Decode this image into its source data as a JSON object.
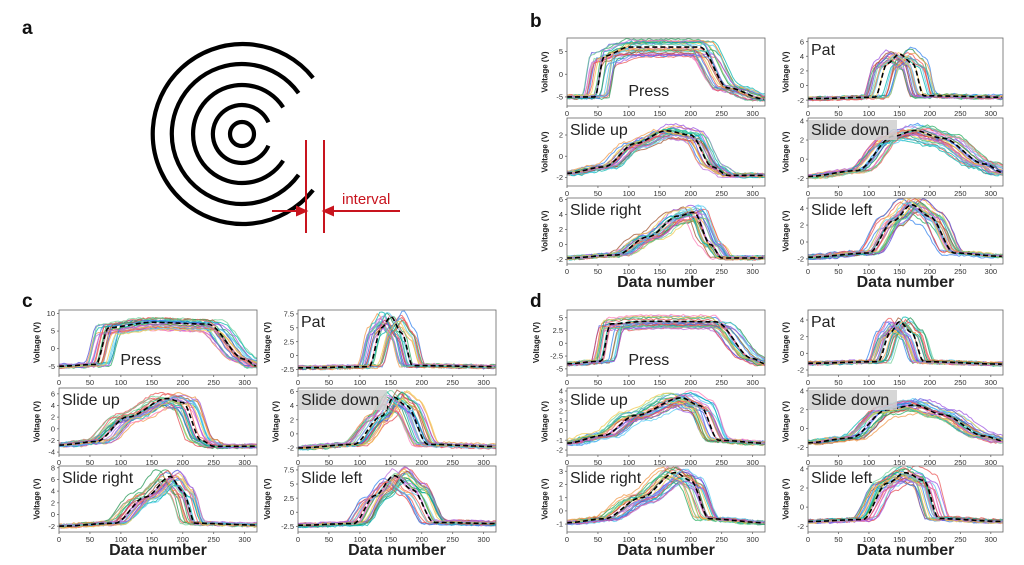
{
  "figure": {
    "panel_labels": {
      "a": "a",
      "b": "b",
      "c": "c",
      "d": "d"
    },
    "interval_label": "interval",
    "accent_color": "#c8141e"
  },
  "chart_data": [
    {
      "panel": "b",
      "type": "line",
      "xlabel": "Data number",
      "xticks": [
        0,
        50,
        100,
        150,
        200,
        250,
        300
      ],
      "xlim": [
        0,
        320
      ],
      "subplots": [
        {
          "gesture": "Press",
          "ylabel": "Voltage (V)",
          "ylim": [
            -7,
            8
          ],
          "yticks": [
            -5,
            0,
            5
          ],
          "mean": [
            [
              0,
              -5
            ],
            [
              45,
              -5
            ],
            [
              60,
              4
            ],
            [
              100,
              6
            ],
            [
              150,
              6
            ],
            [
              215,
              6
            ],
            [
              260,
              -3
            ],
            [
              320,
              -5.5
            ]
          ]
        },
        {
          "gesture": "Pat",
          "ylabel": "Voltage (V)",
          "ylim": [
            -2.8,
            6.5
          ],
          "yticks": [
            -2,
            0,
            2,
            4,
            6
          ],
          "mean": [
            [
              0,
              -1.8
            ],
            [
              110,
              -1.6
            ],
            [
              130,
              3
            ],
            [
              150,
              4.3
            ],
            [
              172,
              3
            ],
            [
              190,
              -1.4
            ],
            [
              320,
              -1.6
            ]
          ]
        },
        {
          "gesture": "Slide up",
          "ylabel": "Voltage (V)",
          "ylim": [
            -2.8,
            3.6
          ],
          "yticks": [
            -2,
            0,
            2
          ],
          "mean": [
            [
              0,
              -1.6
            ],
            [
              60,
              -1
            ],
            [
              110,
              1.2
            ],
            [
              160,
              2.4
            ],
            [
              200,
              2
            ],
            [
              235,
              -1
            ],
            [
              260,
              -1.8
            ],
            [
              320,
              -1.8
            ]
          ]
        },
        {
          "gesture": "Slide down",
          "ylabel": "Voltage (V)",
          "ylim": [
            -2.8,
            4.3
          ],
          "yticks": [
            -2,
            0,
            2,
            4
          ],
          "mean": [
            [
              0,
              -1.8
            ],
            [
              80,
              -1.2
            ],
            [
              140,
              2.4
            ],
            [
              175,
              3
            ],
            [
              220,
              2.2
            ],
            [
              290,
              -0.5
            ],
            [
              320,
              -1.4
            ]
          ]
        },
        {
          "gesture": "Slide right",
          "ylabel": "Voltage (V)",
          "ylim": [
            -2.6,
            6.2
          ],
          "yticks": [
            -2,
            0,
            2,
            4,
            6
          ],
          "mean": [
            [
              0,
              -1.8
            ],
            [
              80,
              -1.4
            ],
            [
              130,
              1
            ],
            [
              180,
              3.8
            ],
            [
              205,
              4.3
            ],
            [
              232,
              0
            ],
            [
              250,
              -1.8
            ],
            [
              320,
              -1.8
            ]
          ]
        },
        {
          "gesture": "Slide left",
          "ylabel": "Voltage (V)",
          "ylim": [
            -2.6,
            5.2
          ],
          "yticks": [
            -2,
            0,
            2,
            4
          ],
          "mean": [
            [
              0,
              -1.8
            ],
            [
              100,
              -1.3
            ],
            [
              140,
              2.5
            ],
            [
              170,
              4.4
            ],
            [
              200,
              3
            ],
            [
              240,
              -1.3
            ],
            [
              320,
              -1.7
            ]
          ]
        }
      ]
    },
    {
      "panel": "c",
      "type": "line",
      "xlabel": "Data number",
      "xticks": [
        0,
        50,
        100,
        150,
        200,
        250,
        300
      ],
      "xlim": [
        0,
        320
      ],
      "subplots": [
        {
          "gesture": "Press",
          "ylabel": "Voltage (V)",
          "ylim": [
            -7.5,
            11
          ],
          "yticks": [
            -5,
            0,
            5,
            10
          ],
          "mean": [
            [
              0,
              -5
            ],
            [
              60,
              -4.5
            ],
            [
              80,
              6
            ],
            [
              150,
              7.5
            ],
            [
              240,
              7
            ],
            [
              300,
              -3
            ],
            [
              320,
              -5
            ]
          ]
        },
        {
          "gesture": "Pat",
          "ylabel": "Voltage (V)",
          "ylim": [
            -3.5,
            8.2
          ],
          "yticks": [
            -2.5,
            0,
            2.5,
            5,
            7.5
          ],
          "mean": [
            [
              0,
              -2.2
            ],
            [
              115,
              -2
            ],
            [
              135,
              5
            ],
            [
              150,
              7
            ],
            [
              168,
              4
            ],
            [
              185,
              -1.8
            ],
            [
              320,
              -2
            ]
          ]
        },
        {
          "gesture": "Slide up",
          "ylabel": "Voltage (V)",
          "ylim": [
            -4.5,
            7
          ],
          "yticks": [
            -4,
            -2,
            0,
            2,
            4,
            6
          ],
          "mean": [
            [
              0,
              -2.8
            ],
            [
              60,
              -2.2
            ],
            [
              110,
              2
            ],
            [
              175,
              5.2
            ],
            [
              200,
              4.5
            ],
            [
              230,
              -2
            ],
            [
              250,
              -3
            ],
            [
              320,
              -3
            ]
          ]
        },
        {
          "gesture": "Slide down",
          "ylabel": "Voltage (V)",
          "ylim": [
            -3,
            6.5
          ],
          "yticks": [
            -2,
            0,
            2,
            4,
            6
          ],
          "mean": [
            [
              0,
              -2
            ],
            [
              90,
              -1.5
            ],
            [
              135,
              2.5
            ],
            [
              155,
              5.2
            ],
            [
              175,
              4
            ],
            [
              210,
              -1.5
            ],
            [
              320,
              -1.8
            ]
          ]
        },
        {
          "gesture": "Slide right",
          "ylabel": "Voltage (V)",
          "ylim": [
            -3,
            8.3
          ],
          "yticks": [
            -2,
            0,
            2,
            4,
            6,
            8
          ],
          "mean": [
            [
              0,
              -2
            ],
            [
              90,
              -1.5
            ],
            [
              140,
              3
            ],
            [
              180,
              6.5
            ],
            [
              200,
              4
            ],
            [
              220,
              -1.5
            ],
            [
              320,
              -1.8
            ]
          ]
        },
        {
          "gesture": "Slide left",
          "ylabel": "Voltage (V)",
          "ylim": [
            -3.5,
            8.2
          ],
          "yticks": [
            -2.5,
            0,
            2.5,
            5,
            7.5
          ],
          "mean": [
            [
              0,
              -2.3
            ],
            [
              90,
              -2
            ],
            [
              125,
              3
            ],
            [
              155,
              6.5
            ],
            [
              185,
              4
            ],
            [
              220,
              -1.8
            ],
            [
              320,
              -2
            ]
          ]
        }
      ]
    },
    {
      "panel": "d",
      "type": "line",
      "xlabel": "Data number",
      "xticks": [
        0,
        50,
        100,
        150,
        200,
        250,
        300
      ],
      "xlim": [
        0,
        320
      ],
      "subplots": [
        {
          "gesture": "Press",
          "ylabel": "Voltage (V)",
          "ylim": [
            -6.2,
            6.5
          ],
          "yticks": [
            -5,
            -2.5,
            0,
            2.5,
            5
          ],
          "mean": [
            [
              0,
              -4
            ],
            [
              55,
              -3.5
            ],
            [
              70,
              3.8
            ],
            [
              130,
              4.3
            ],
            [
              240,
              4.2
            ],
            [
              300,
              -3
            ],
            [
              320,
              -4
            ]
          ]
        },
        {
          "gesture": "Pat",
          "ylabel": "Voltage (V)",
          "ylim": [
            -2.6,
            5.2
          ],
          "yticks": [
            -2,
            0,
            2,
            4
          ],
          "mean": [
            [
              0,
              -1.2
            ],
            [
              115,
              -1
            ],
            [
              135,
              2.5
            ],
            [
              150,
              3.8
            ],
            [
              170,
              2.5
            ],
            [
              190,
              -1
            ],
            [
              320,
              -1.3
            ]
          ]
        },
        {
          "gesture": "Slide up",
          "ylabel": "Voltage (V)",
          "ylim": [
            -2.5,
            4.3
          ],
          "yticks": [
            -2,
            -1,
            0,
            1,
            2,
            3,
            4
          ],
          "mean": [
            [
              0,
              -1.3
            ],
            [
              60,
              -0.5
            ],
            [
              110,
              1.5
            ],
            [
              185,
              3.3
            ],
            [
              215,
              2.5
            ],
            [
              245,
              -1
            ],
            [
              320,
              -1.3
            ]
          ]
        },
        {
          "gesture": "Slide down",
          "ylabel": "Voltage (V)",
          "ylim": [
            -2.8,
            4.3
          ],
          "yticks": [
            -2,
            0,
            2,
            4
          ],
          "mean": [
            [
              0,
              -1.5
            ],
            [
              70,
              -1
            ],
            [
              130,
              2
            ],
            [
              175,
              2.5
            ],
            [
              220,
              1.5
            ],
            [
              290,
              -0.8
            ],
            [
              320,
              -1.3
            ]
          ]
        },
        {
          "gesture": "Slide right",
          "ylabel": "Voltage (V)",
          "ylim": [
            -1.6,
            3.4
          ],
          "yticks": [
            -1,
            0,
            1,
            2,
            3
          ],
          "mean": [
            [
              0,
              -0.9
            ],
            [
              60,
              -0.6
            ],
            [
              120,
              1
            ],
            [
              175,
              2.9
            ],
            [
              200,
              2.3
            ],
            [
              230,
              -0.6
            ],
            [
              320,
              -0.9
            ]
          ]
        },
        {
          "gesture": "Slide left",
          "ylabel": "Voltage (V)",
          "ylim": [
            -2.6,
            4.3
          ],
          "yticks": [
            -2,
            0,
            2,
            4
          ],
          "mean": [
            [
              0,
              -1.5
            ],
            [
              90,
              -1.3
            ],
            [
              130,
              2.5
            ],
            [
              160,
              3.6
            ],
            [
              190,
              2.8
            ],
            [
              215,
              -1.2
            ],
            [
              320,
              -1.5
            ]
          ]
        }
      ]
    }
  ]
}
